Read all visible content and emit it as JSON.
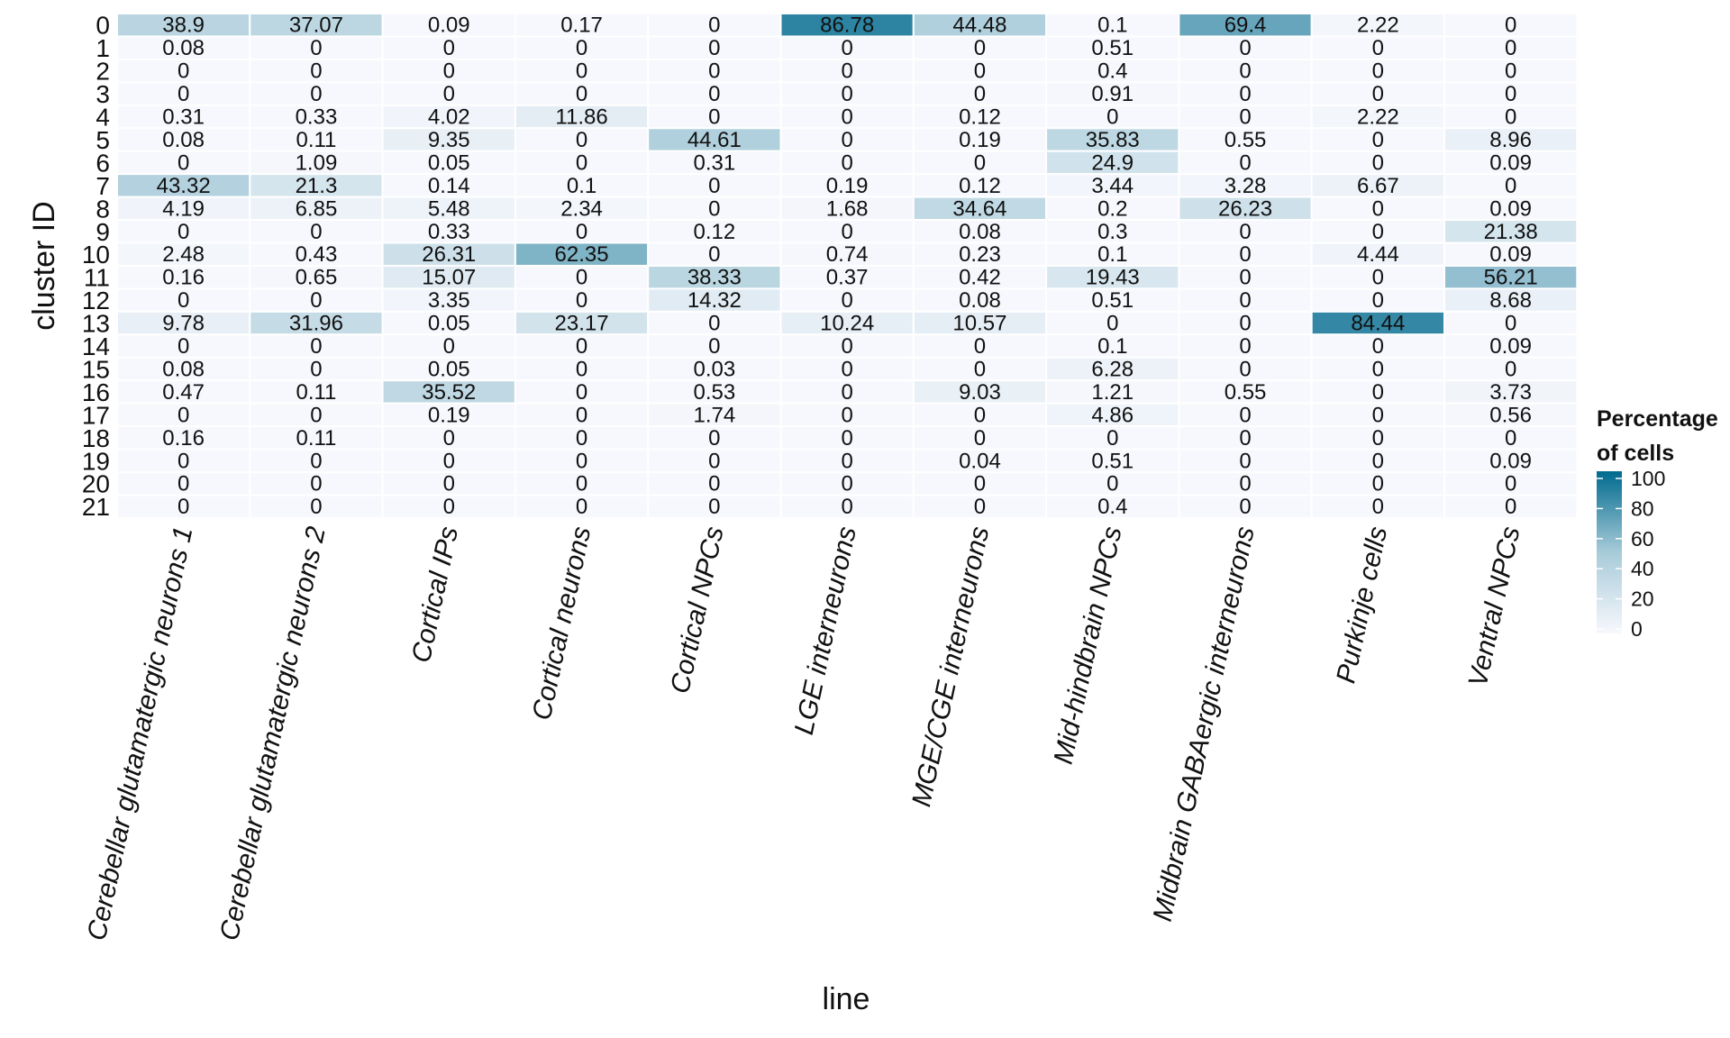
{
  "chart_data": {
    "type": "heatmap",
    "xlabel": "line",
    "ylabel": "cluster ID",
    "x_categories": [
      "Cerebellar glutamatergic neurons 1",
      "Cerebellar glutamatergic neurons 2",
      "Cortical IPs",
      "Cortical neurons",
      "Cortical NPCs",
      "LGE interneurons",
      "MGE/CGE interneurons",
      "Mid-hindbrain NPCs",
      "Midbrain GABAergic interneurons",
      "Purkinje cells",
      "Ventral NPCs"
    ],
    "y_categories": [
      "0",
      "1",
      "2",
      "3",
      "4",
      "5",
      "6",
      "7",
      "8",
      "9",
      "10",
      "11",
      "12",
      "13",
      "14",
      "15",
      "16",
      "17",
      "18",
      "19",
      "20",
      "21"
    ],
    "values": [
      [
        38.9,
        37.07,
        0.09,
        0.17,
        0,
        86.78,
        44.48,
        0.1,
        69.4,
        2.22,
        0
      ],
      [
        0.08,
        0,
        0,
        0,
        0,
        0,
        0,
        0.51,
        0,
        0,
        0
      ],
      [
        0,
        0,
        0,
        0,
        0,
        0,
        0,
        0.4,
        0,
        0,
        0
      ],
      [
        0,
        0,
        0,
        0,
        0,
        0,
        0,
        0.91,
        0,
        0,
        0
      ],
      [
        0.31,
        0.33,
        4.02,
        11.86,
        0,
        0,
        0.12,
        0,
        0,
        2.22,
        0
      ],
      [
        0.08,
        0.11,
        9.35,
        0,
        44.61,
        0,
        0.19,
        35.83,
        0.55,
        0,
        8.96
      ],
      [
        0,
        1.09,
        0.05,
        0,
        0.31,
        0,
        0,
        24.9,
        0,
        0,
        0.09
      ],
      [
        43.32,
        21.3,
        0.14,
        0.1,
        0,
        0.19,
        0.12,
        3.44,
        3.28,
        6.67,
        0
      ],
      [
        4.19,
        6.85,
        5.48,
        2.34,
        0,
        1.68,
        34.64,
        0.2,
        26.23,
        0,
        0.09
      ],
      [
        0,
        0,
        0.33,
        0,
        0.12,
        0,
        0.08,
        0.3,
        0,
        0,
        21.38
      ],
      [
        2.48,
        0.43,
        26.31,
        62.35,
        0,
        0.74,
        0.23,
        0.1,
        0,
        4.44,
        0.09
      ],
      [
        0.16,
        0.65,
        15.07,
        0,
        38.33,
        0.37,
        0.42,
        19.43,
        0,
        0,
        56.21
      ],
      [
        0,
        0,
        3.35,
        0,
        14.32,
        0,
        0.08,
        0.51,
        0,
        0,
        8.68
      ],
      [
        9.78,
        31.96,
        0.05,
        23.17,
        0,
        10.24,
        10.57,
        0,
        0,
        84.44,
        0
      ],
      [
        0,
        0,
        0,
        0,
        0,
        0,
        0,
        0.1,
        0,
        0,
        0.09
      ],
      [
        0.08,
        0,
        0.05,
        0,
        0.03,
        0,
        0,
        6.28,
        0,
        0,
        0
      ],
      [
        0.47,
        0.11,
        35.52,
        0,
        0.53,
        0,
        9.03,
        1.21,
        0.55,
        0,
        3.73
      ],
      [
        0,
        0,
        0.19,
        0,
        1.74,
        0,
        0,
        4.86,
        0,
        0,
        0.56
      ],
      [
        0.16,
        0.11,
        0,
        0,
        0,
        0,
        0,
        0,
        0,
        0,
        0
      ],
      [
        0,
        0,
        0,
        0,
        0,
        0,
        0.04,
        0.51,
        0,
        0,
        0.09
      ],
      [
        0,
        0,
        0,
        0,
        0,
        0,
        0,
        0,
        0,
        0,
        0
      ],
      [
        0,
        0,
        0,
        0,
        0,
        0,
        0,
        0.4,
        0,
        0,
        0
      ]
    ],
    "legend": {
      "title_line1": "Percentage",
      "title_line2": "of cells",
      "ticks": [
        100,
        80,
        60,
        40,
        20,
        0
      ],
      "range": [
        0,
        100
      ],
      "placement": "right"
    },
    "colors": {
      "low": "#f7f8fd",
      "mid": "#a8cbd9",
      "high": "#006a8e",
      "cell_border": "#ffffff"
    },
    "grid": false
  }
}
